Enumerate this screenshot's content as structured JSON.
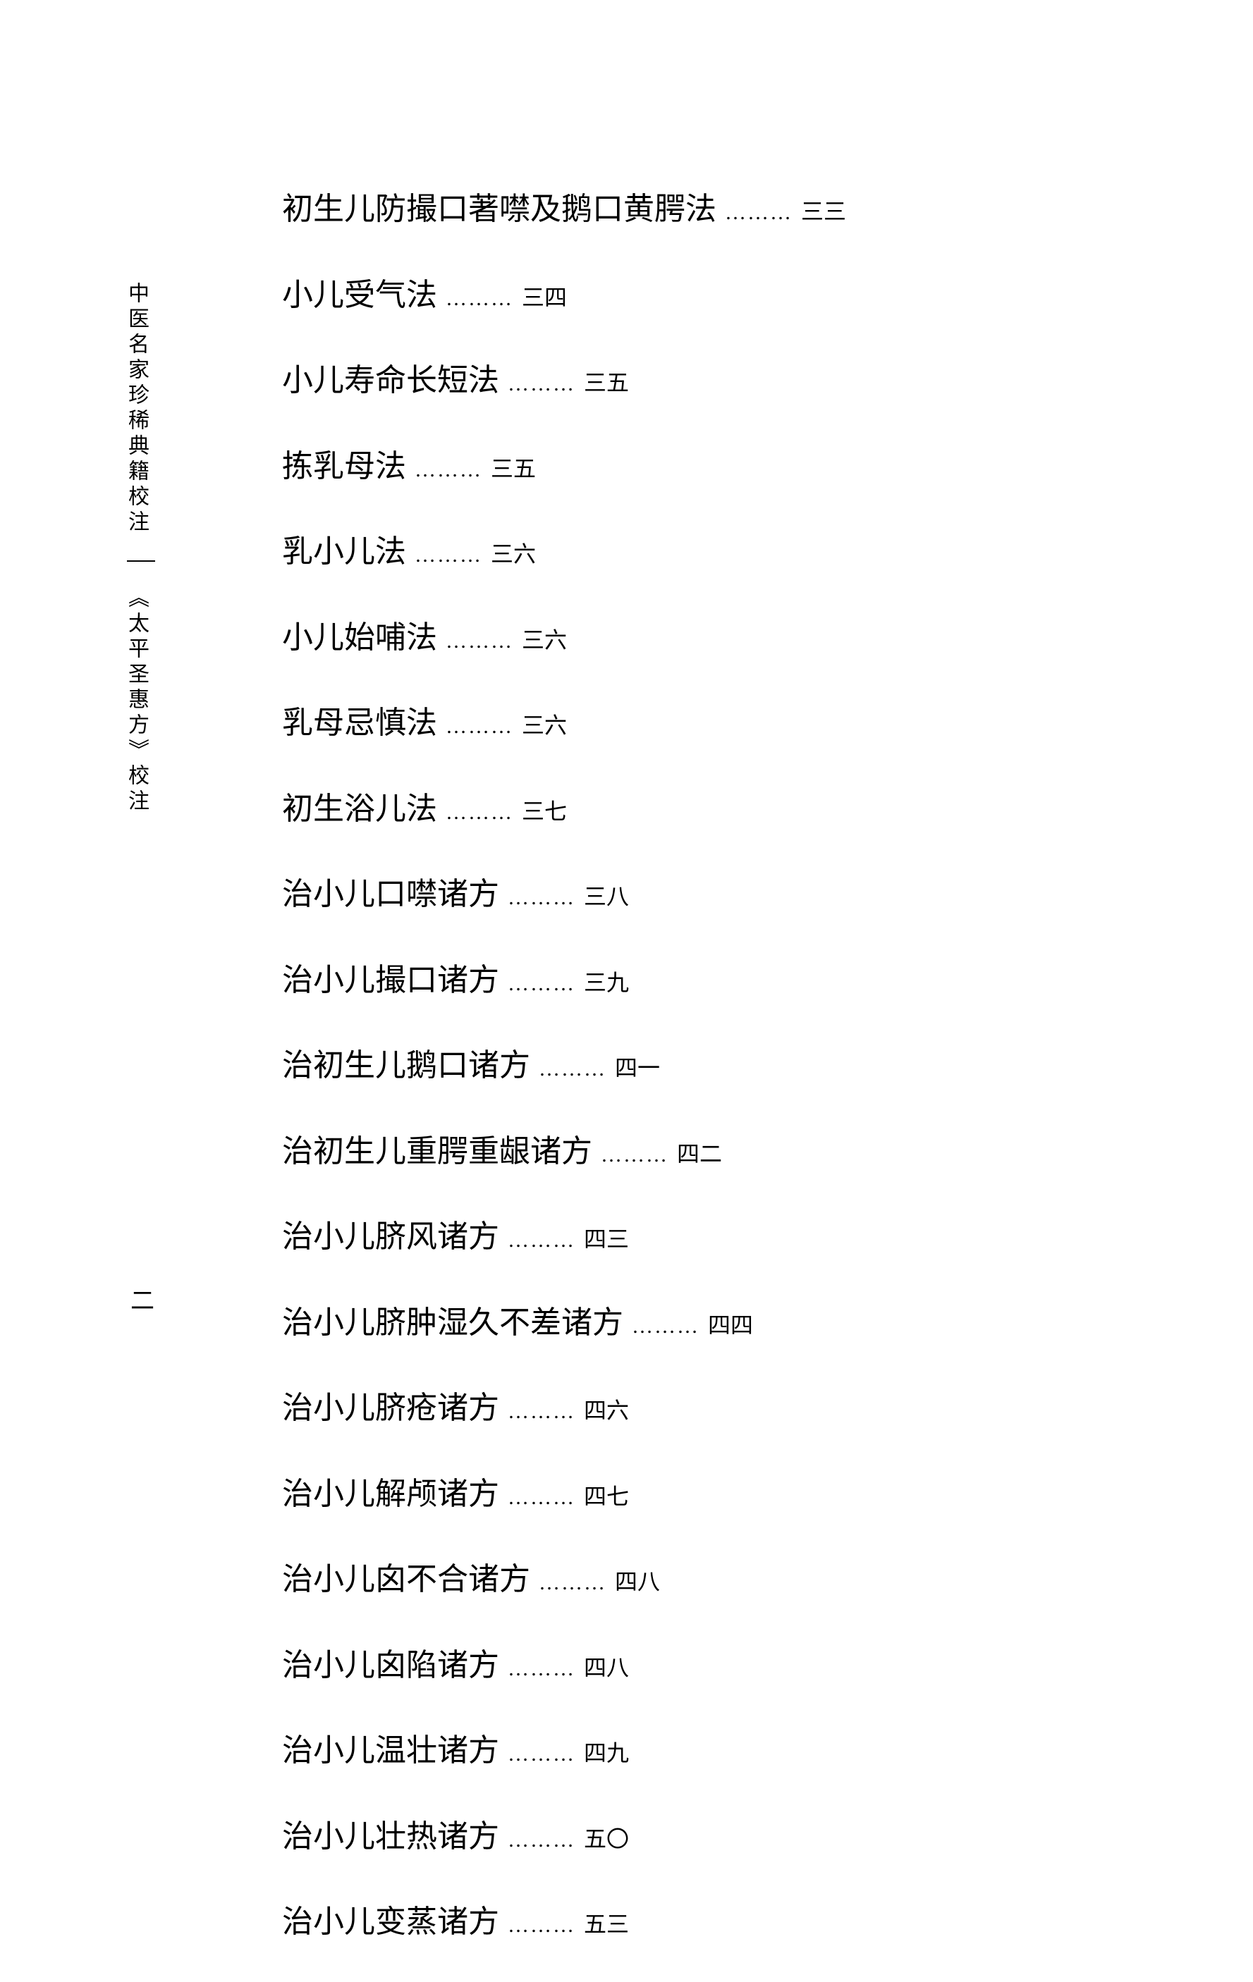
{
  "sidebar": {
    "series_title": "中医名家珍稀典籍校注",
    "book_title": "《太平圣惠方》校注"
  },
  "page_number": "二",
  "toc": {
    "dots": "………",
    "entries": [
      {
        "title": "初生儿防撮口著噤及鹅口黄腭法",
        "page": "三三"
      },
      {
        "title": "小儿受气法",
        "page": "三四"
      },
      {
        "title": "小儿寿命长短法",
        "page": "三五"
      },
      {
        "title": "拣乳母法",
        "page": "三五"
      },
      {
        "title": "乳小儿法",
        "page": "三六"
      },
      {
        "title": "小儿始哺法",
        "page": "三六"
      },
      {
        "title": "乳母忌慎法",
        "page": "三六"
      },
      {
        "title": "初生浴儿法",
        "page": "三七"
      },
      {
        "title": "治小儿口噤诸方",
        "page": "三八"
      },
      {
        "title": "治小儿撮口诸方",
        "page": "三九"
      },
      {
        "title": "治初生儿鹅口诸方",
        "page": "四一"
      },
      {
        "title": "治初生儿重腭重龈诸方",
        "page": "四二"
      },
      {
        "title": "治小儿脐风诸方",
        "page": "四三"
      },
      {
        "title": "治小儿脐肿湿久不差诸方",
        "page": "四四"
      },
      {
        "title": "治小儿脐疮诸方",
        "page": "四六"
      },
      {
        "title": "治小儿解颅诸方",
        "page": "四七"
      },
      {
        "title": "治小儿囟不合诸方",
        "page": "四八"
      },
      {
        "title": "治小儿囟陷诸方",
        "page": "四八"
      },
      {
        "title": "治小儿温壮诸方",
        "page": "四九"
      },
      {
        "title": "治小儿壮热诸方",
        "page": "五〇"
      },
      {
        "title": "治小儿变蒸诸方",
        "page": "五三"
      }
    ]
  }
}
